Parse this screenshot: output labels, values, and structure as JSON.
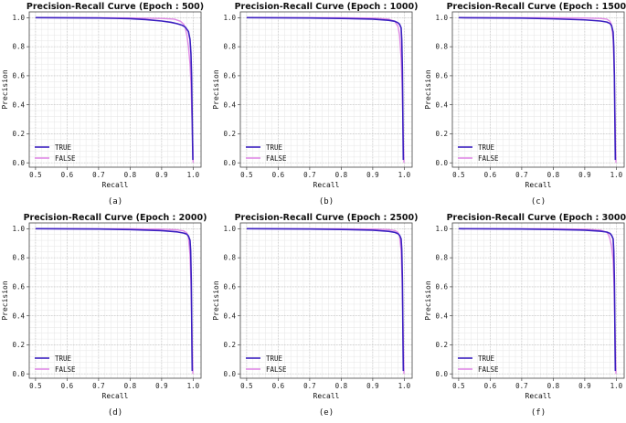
{
  "chart_data": [
    {
      "type": "line",
      "title": "Precision-Recall Curve (Epoch : 500)",
      "caption": "(a)",
      "xlabel": "Recall",
      "ylabel": "Precision",
      "xlim": [
        0.48,
        1.025
      ],
      "ylim": [
        -0.03,
        1.04
      ],
      "xticks": [
        "0.5",
        "0.6",
        "0.7",
        "0.8",
        "0.9",
        "1.0"
      ],
      "yticks": [
        "0.0",
        "0.2",
        "0.4",
        "0.6",
        "0.8",
        "1.0"
      ],
      "grid": true,
      "legend": "lower-left",
      "series": [
        {
          "name": "TRUE",
          "color": "#3a1fc0",
          "x": [
            0.5,
            0.7,
            0.8,
            0.85,
            0.9,
            0.93,
            0.95,
            0.965,
            0.975,
            0.985,
            0.99,
            0.993,
            0.995,
            0.996,
            0.997,
            0.998,
            0.999
          ],
          "y": [
            1.0,
            0.998,
            0.993,
            0.987,
            0.977,
            0.968,
            0.958,
            0.948,
            0.935,
            0.905,
            0.85,
            0.75,
            0.6,
            0.45,
            0.3,
            0.15,
            0.02
          ]
        },
        {
          "name": "FALSE",
          "color": "#e08ae6",
          "x": [
            0.5,
            0.7,
            0.8,
            0.9,
            0.94,
            0.96,
            0.97,
            0.975,
            0.98,
            0.985,
            0.99,
            0.993,
            0.995,
            0.997,
            0.999,
            1.0
          ],
          "y": [
            1.0,
            0.999,
            0.998,
            0.995,
            0.99,
            0.975,
            0.955,
            0.93,
            0.88,
            0.8,
            0.68,
            0.55,
            0.4,
            0.25,
            0.1,
            0.0
          ]
        }
      ]
    },
    {
      "type": "line",
      "title": "Precision-Recall Curve (Epoch : 1000)",
      "caption": "(b)",
      "xlabel": "Recall",
      "ylabel": "Precision",
      "xlim": [
        0.48,
        1.025
      ],
      "ylim": [
        -0.03,
        1.04
      ],
      "xticks": [
        "0.5",
        "0.6",
        "0.7",
        "0.8",
        "0.9",
        "1.0"
      ],
      "yticks": [
        "0.0",
        "0.2",
        "0.4",
        "0.6",
        "0.8",
        "1.0"
      ],
      "grid": true,
      "legend": "lower-left",
      "series": [
        {
          "name": "TRUE",
          "color": "#3a1fc0",
          "x": [
            0.5,
            0.7,
            0.8,
            0.9,
            0.95,
            0.97,
            0.98,
            0.985,
            0.99,
            0.992,
            0.994,
            0.995,
            0.996,
            0.997
          ],
          "y": [
            1.0,
            0.998,
            0.995,
            0.99,
            0.982,
            0.975,
            0.965,
            0.955,
            0.93,
            0.85,
            0.65,
            0.45,
            0.2,
            0.02
          ]
        },
        {
          "name": "FALSE",
          "color": "#e08ae6",
          "x": [
            0.5,
            0.8,
            0.9,
            0.95,
            0.97,
            0.98,
            0.985,
            0.99,
            0.993,
            0.995,
            0.997,
            0.999
          ],
          "y": [
            1.0,
            0.999,
            0.997,
            0.99,
            0.975,
            0.94,
            0.88,
            0.72,
            0.55,
            0.35,
            0.15,
            0.0
          ]
        }
      ]
    },
    {
      "type": "line",
      "title": "Precision-Recall Curve (Epoch : 1500)",
      "caption": "(c)",
      "xlabel": "Recall",
      "ylabel": "Precision",
      "xlim": [
        0.48,
        1.025
      ],
      "ylim": [
        -0.03,
        1.04
      ],
      "xticks": [
        "0.5",
        "0.6",
        "0.7",
        "0.8",
        "0.9",
        "1.0"
      ],
      "yticks": [
        "0.0",
        "0.2",
        "0.4",
        "0.6",
        "0.8",
        "1.0"
      ],
      "grid": true,
      "legend": "lower-left",
      "series": [
        {
          "name": "TRUE",
          "color": "#3a1fc0",
          "x": [
            0.5,
            0.7,
            0.8,
            0.9,
            0.95,
            0.97,
            0.98,
            0.985,
            0.99,
            0.992,
            0.994,
            0.995,
            0.996,
            0.997
          ],
          "y": [
            1.0,
            0.997,
            0.992,
            0.985,
            0.977,
            0.97,
            0.96,
            0.945,
            0.9,
            0.8,
            0.6,
            0.4,
            0.2,
            0.02
          ]
        },
        {
          "name": "FALSE",
          "color": "#e08ae6",
          "x": [
            0.5,
            0.8,
            0.9,
            0.95,
            0.97,
            0.98,
            0.985,
            0.99,
            0.993,
            0.995,
            0.997,
            0.999
          ],
          "y": [
            1.0,
            0.999,
            0.998,
            0.995,
            0.99,
            0.975,
            0.95,
            0.85,
            0.65,
            0.45,
            0.2,
            0.0
          ]
        }
      ]
    },
    {
      "type": "line",
      "title": "Precision-Recall Curve (Epoch : 2000)",
      "caption": "(d)",
      "xlabel": "Recall",
      "ylabel": "Precision",
      "xlim": [
        0.48,
        1.025
      ],
      "ylim": [
        -0.03,
        1.04
      ],
      "xticks": [
        "0.5",
        "0.6",
        "0.7",
        "0.8",
        "0.9",
        "1.0"
      ],
      "yticks": [
        "0.0",
        "0.2",
        "0.4",
        "0.6",
        "0.8",
        "1.0"
      ],
      "grid": true,
      "legend": "lower-left",
      "series": [
        {
          "name": "TRUE",
          "color": "#3a1fc0",
          "x": [
            0.5,
            0.7,
            0.8,
            0.9,
            0.95,
            0.97,
            0.98,
            0.985,
            0.99,
            0.992,
            0.994,
            0.995,
            0.996,
            0.997
          ],
          "y": [
            1.0,
            0.998,
            0.994,
            0.987,
            0.978,
            0.97,
            0.962,
            0.95,
            0.92,
            0.85,
            0.65,
            0.45,
            0.2,
            0.02
          ]
        },
        {
          "name": "FALSE",
          "color": "#e08ae6",
          "x": [
            0.5,
            0.8,
            0.9,
            0.95,
            0.97,
            0.98,
            0.985,
            0.99,
            0.993,
            0.995,
            0.997,
            0.999
          ],
          "y": [
            1.0,
            0.999,
            0.997,
            0.992,
            0.985,
            0.97,
            0.94,
            0.82,
            0.62,
            0.42,
            0.2,
            0.0
          ]
        }
      ]
    },
    {
      "type": "line",
      "title": "Precision-Recall Curve (Epoch : 2500)",
      "caption": "(e)",
      "xlabel": "Recall",
      "ylabel": "Precision",
      "xlim": [
        0.48,
        1.025
      ],
      "ylim": [
        -0.03,
        1.04
      ],
      "xticks": [
        "0.5",
        "0.6",
        "0.7",
        "0.8",
        "0.9",
        "1.0"
      ],
      "yticks": [
        "0.0",
        "0.2",
        "0.4",
        "0.6",
        "0.8",
        "1.0"
      ],
      "grid": true,
      "legend": "lower-left",
      "series": [
        {
          "name": "TRUE",
          "color": "#3a1fc0",
          "x": [
            0.5,
            0.7,
            0.8,
            0.9,
            0.95,
            0.97,
            0.98,
            0.985,
            0.99,
            0.992,
            0.994,
            0.995,
            0.996,
            0.997
          ],
          "y": [
            1.0,
            0.998,
            0.995,
            0.99,
            0.982,
            0.975,
            0.966,
            0.955,
            0.93,
            0.86,
            0.66,
            0.45,
            0.2,
            0.02
          ]
        },
        {
          "name": "FALSE",
          "color": "#e08ae6",
          "x": [
            0.5,
            0.8,
            0.9,
            0.95,
            0.97,
            0.98,
            0.985,
            0.99,
            0.993,
            0.995,
            0.997,
            0.999
          ],
          "y": [
            1.0,
            0.999,
            0.998,
            0.994,
            0.988,
            0.975,
            0.95,
            0.85,
            0.65,
            0.45,
            0.2,
            0.0
          ]
        }
      ]
    },
    {
      "type": "line",
      "title": "Precision-Recall Curve (Epoch : 3000)",
      "caption": "(f)",
      "xlabel": "Recall",
      "ylabel": "Precision",
      "xlim": [
        0.48,
        1.025
      ],
      "ylim": [
        -0.03,
        1.04
      ],
      "xticks": [
        "0.5",
        "0.6",
        "0.7",
        "0.8",
        "0.9",
        "1.0"
      ],
      "yticks": [
        "0.0",
        "0.2",
        "0.4",
        "0.6",
        "0.8",
        "1.0"
      ],
      "grid": true,
      "legend": "lower-left",
      "series": [
        {
          "name": "TRUE",
          "color": "#3a1fc0",
          "x": [
            0.5,
            0.7,
            0.8,
            0.9,
            0.95,
            0.97,
            0.98,
            0.985,
            0.99,
            0.992,
            0.994,
            0.995,
            0.996,
            0.997
          ],
          "y": [
            1.0,
            0.998,
            0.995,
            0.99,
            0.983,
            0.977,
            0.968,
            0.955,
            0.93,
            0.85,
            0.65,
            0.45,
            0.2,
            0.02
          ]
        },
        {
          "name": "FALSE",
          "color": "#e08ae6",
          "x": [
            0.5,
            0.8,
            0.9,
            0.95,
            0.97,
            0.975,
            0.98,
            0.985,
            0.99,
            0.993,
            0.995,
            0.997,
            0.999
          ],
          "y": [
            1.0,
            0.999,
            0.997,
            0.99,
            0.975,
            0.96,
            0.93,
            0.88,
            0.78,
            0.6,
            0.4,
            0.2,
            0.0
          ]
        }
      ]
    }
  ]
}
